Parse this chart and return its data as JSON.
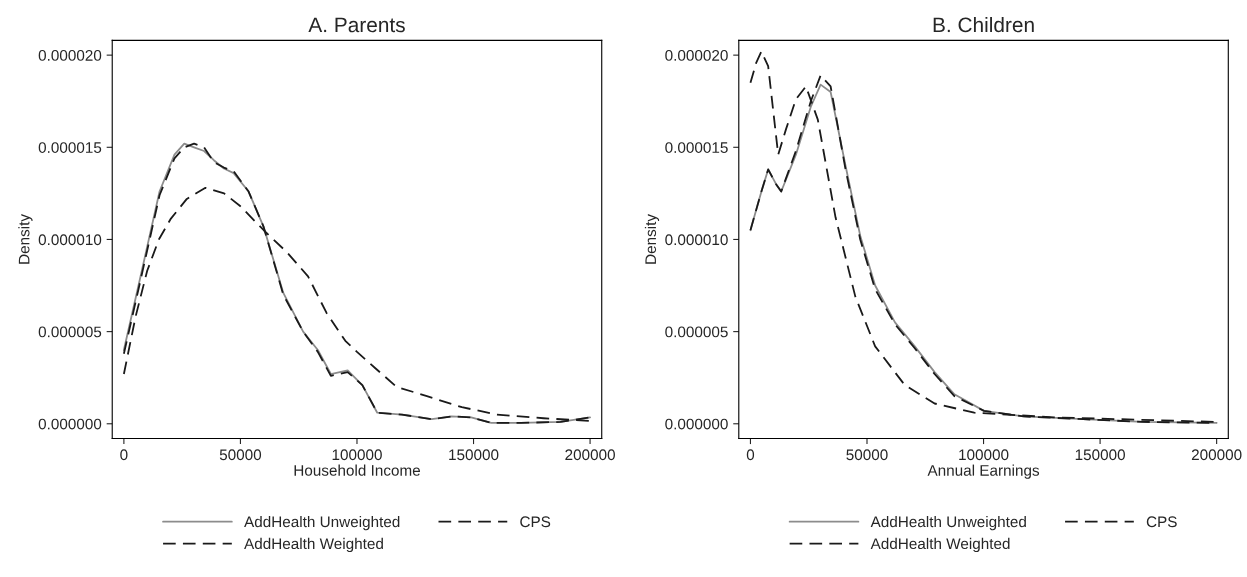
{
  "chart_data": [
    {
      "type": "line",
      "title": "A. Parents",
      "xlabel": "Household Income",
      "ylabel": "Density",
      "xlim": [
        -5000,
        205000
      ],
      "ylim": [
        -8e-07,
        2.08e-05
      ],
      "xticks": [
        0,
        50000,
        100000,
        150000,
        200000
      ],
      "yticks": [
        {
          "value": 0,
          "label": "0.000000"
        },
        {
          "value": 5e-06,
          "label": "0.000005"
        },
        {
          "value": 1e-05,
          "label": "0.000010"
        },
        {
          "value": 1.5e-05,
          "label": "0.000015"
        },
        {
          "value": 2e-05,
          "label": "0.000020"
        }
      ],
      "grid": false,
      "legend": "bottom",
      "marker": "none",
      "series": [
        {
          "name": "AddHealth Unweighted",
          "color": "#8c8c8c",
          "line_style": "solid",
          "x": [
            0,
            6800,
            15300,
            21700,
            25900,
            30100,
            34400,
            38600,
            42900,
            47100,
            53500,
            59900,
            68400,
            76900,
            83200,
            88800,
            96000,
            102300,
            108700,
            119300,
            132100,
            140600,
            149000,
            157600,
            170300,
            187300,
            200000
          ],
          "values": [
            4e-06,
            7.8e-06,
            1.26e-05,
            1.46e-05,
            1.52e-05,
            1.5e-05,
            1.48e-05,
            1.43e-05,
            1.385e-05,
            1.36e-05,
            1.26e-05,
            1.07e-05,
            7.1e-06,
            5e-06,
            4e-06,
            2.7e-06,
            2.9e-06,
            2.1e-06,
            6e-07,
            5e-07,
            2.5e-07,
            4e-07,
            3.5e-07,
            5e-08,
            5e-08,
            1e-07,
            3.5e-07
          ]
        },
        {
          "name": "AddHealth Weighted",
          "color": "#1a1a1a",
          "line_style": "dashed",
          "x": [
            0,
            6800,
            15300,
            21700,
            25900,
            30100,
            34400,
            38600,
            42900,
            47100,
            53500,
            59900,
            68400,
            76900,
            83200,
            88800,
            96000,
            102300,
            108700,
            119300,
            132100,
            140600,
            149000,
            157600,
            170300,
            187300,
            200000
          ],
          "values": [
            3.8e-06,
            7.6e-06,
            1.24e-05,
            1.44e-05,
            1.5e-05,
            1.52e-05,
            1.5e-05,
            1.42e-05,
            1.39e-05,
            1.37e-05,
            1.26e-05,
            1.07e-05,
            7e-06,
            5e-06,
            3.9e-06,
            2.6e-06,
            2.8e-06,
            2.1e-06,
            6e-07,
            5e-07,
            2.5e-07,
            4e-07,
            3.5e-07,
            5e-08,
            5e-08,
            1e-07,
            3.5e-07
          ]
        },
        {
          "name": "CPS",
          "color": "#1a1a1a",
          "line_style": "dashed",
          "x": [
            0,
            5000,
            10000,
            15000,
            20000,
            27000,
            35000,
            43000,
            50000,
            60000,
            70000,
            79000,
            87000,
            95000,
            100000,
            108000,
            117000,
            130000,
            145000,
            160000,
            180000,
            200000
          ],
          "values": [
            2.7e-06,
            5.8e-06,
            8.3e-06,
            1e-05,
            1.11e-05,
            1.22e-05,
            1.28e-05,
            1.25e-05,
            1.18e-05,
            1.05e-05,
            9.3e-06,
            8e-06,
            6e-06,
            4.5e-06,
            3.9e-06,
            3e-06,
            2e-06,
            1.5e-06,
            9e-07,
            5e-07,
            3e-07,
            1.5e-07
          ]
        }
      ]
    },
    {
      "type": "line",
      "title": "B. Children",
      "xlabel": "Annual Earnings",
      "ylabel": "Density",
      "xlim": [
        -5000,
        205000
      ],
      "ylim": [
        -8e-07,
        2.08e-05
      ],
      "xticks": [
        0,
        50000,
        100000,
        150000,
        200000
      ],
      "yticks": [
        {
          "value": 0,
          "label": "0.000000"
        },
        {
          "value": 5e-06,
          "label": "0.000005"
        },
        {
          "value": 1e-05,
          "label": "0.000010"
        },
        {
          "value": 1.5e-05,
          "label": "0.000015"
        },
        {
          "value": 2e-05,
          "label": "0.000020"
        }
      ],
      "grid": false,
      "legend": "bottom",
      "marker": "none",
      "series": [
        {
          "name": "AddHealth Unweighted",
          "color": "#8c8c8c",
          "line_style": "solid",
          "x": [
            0,
            4700,
            7600,
            11000,
            13200,
            19500,
            25900,
            30100,
            34400,
            40800,
            47100,
            53500,
            62000,
            70500,
            79000,
            87500,
            100200,
            117200,
            142700,
            168200,
            200000
          ],
          "values": [
            1.05e-05,
            1.26e-05,
            1.38e-05,
            1.3e-05,
            1.26e-05,
            1.46e-05,
            1.72e-05,
            1.84e-05,
            1.8e-05,
            1.4e-05,
            1.02e-05,
            7.5e-06,
            5.5e-06,
            4.2e-06,
            2.8e-06,
            1.6e-06,
            7e-07,
            4e-07,
            2.5e-07,
            1e-07,
            5e-08
          ]
        },
        {
          "name": "AddHealth Weighted",
          "color": "#1a1a1a",
          "line_style": "dashed",
          "x": [
            0,
            4700,
            7600,
            11000,
            13200,
            19500,
            25900,
            30100,
            34400,
            40800,
            47100,
            53500,
            62000,
            70500,
            79000,
            87500,
            100200,
            117200,
            142700,
            168200,
            200000
          ],
          "values": [
            1.05e-05,
            1.26e-05,
            1.38e-05,
            1.3e-05,
            1.26e-05,
            1.48e-05,
            1.75e-05,
            1.89e-05,
            1.83e-05,
            1.38e-05,
            1e-05,
            7.3e-06,
            5.4e-06,
            4.1e-06,
            2.7e-06,
            1.5e-06,
            7e-07,
            4e-07,
            2.5e-07,
            1e-07,
            5e-08
          ]
        },
        {
          "name": "CPS",
          "color": "#1a1a1a",
          "line_style": "dashed",
          "x": [
            0,
            2500,
            4700,
            7600,
            11900,
            15300,
            19500,
            23800,
            28900,
            36500,
            45000,
            53500,
            66200,
            79000,
            96000,
            130000,
            200000
          ],
          "values": [
            1.85e-05,
            1.96e-05,
            2.02e-05,
            1.94e-05,
            1.46e-05,
            1.6e-05,
            1.76e-05,
            1.83e-05,
            1.65e-05,
            1.12e-05,
            6.9e-06,
            4.2e-06,
            2.1e-06,
            1.1e-06,
            6e-07,
            3.5e-07,
            1e-07
          ]
        }
      ]
    }
  ]
}
